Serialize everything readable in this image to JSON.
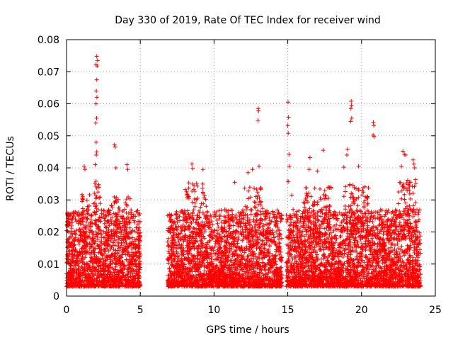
{
  "chart_data": {
    "type": "scatter",
    "title": "Day 330 of 2019, Rate Of TEC Index for receiver wind",
    "xlabel": "GPS time / hours",
    "ylabel": "ROTI / TECUs",
    "xlim": [
      0,
      25
    ],
    "ylim": [
      0,
      0.08
    ],
    "x_ticks": [
      0,
      5,
      10,
      15,
      20,
      25
    ],
    "y_ticks": [
      0,
      0.01,
      0.02,
      0.03,
      0.04,
      0.05,
      0.06,
      0.07,
      0.08
    ],
    "x_tick_labels": [
      "0",
      "5",
      "10",
      "15",
      "20",
      "25"
    ],
    "y_tick_labels": [
      "0",
      "0.01",
      "0.02",
      "0.03",
      "0.04",
      "0.05",
      "0.06",
      "0.07",
      "0.08"
    ],
    "grid": true,
    "marker": "+",
    "series_color": "#ff0000",
    "segments": [
      {
        "start": 0.0,
        "end": 5.0
      },
      {
        "start": 6.85,
        "end": 14.6
      },
      {
        "start": 14.9,
        "end": 24.0
      }
    ],
    "base_points_per_hour": 320,
    "base_range": [
      0.003,
      0.021
    ],
    "outliers": [
      {
        "x": 2.05,
        "y": 0.0748
      },
      {
        "x": 2.1,
        "y": 0.0735
      },
      {
        "x": 2.0,
        "y": 0.0722
      },
      {
        "x": 2.08,
        "y": 0.0718
      },
      {
        "x": 2.05,
        "y": 0.0675
      },
      {
        "x": 2.02,
        "y": 0.064
      },
      {
        "x": 2.06,
        "y": 0.062
      },
      {
        "x": 2.0,
        "y": 0.06
      },
      {
        "x": 2.04,
        "y": 0.0555
      },
      {
        "x": 1.98,
        "y": 0.054
      },
      {
        "x": 2.01,
        "y": 0.048
      },
      {
        "x": 2.05,
        "y": 0.045
      },
      {
        "x": 2.02,
        "y": 0.044
      },
      {
        "x": 1.95,
        "y": 0.041
      },
      {
        "x": 3.25,
        "y": 0.0472
      },
      {
        "x": 3.3,
        "y": 0.0465
      },
      {
        "x": 3.35,
        "y": 0.04
      },
      {
        "x": 1.2,
        "y": 0.0405
      },
      {
        "x": 1.25,
        "y": 0.0395
      },
      {
        "x": 4.1,
        "y": 0.041
      },
      {
        "x": 4.15,
        "y": 0.0395
      },
      {
        "x": 8.5,
        "y": 0.0412
      },
      {
        "x": 8.55,
        "y": 0.0398
      },
      {
        "x": 9.25,
        "y": 0.0395
      },
      {
        "x": 11.4,
        "y": 0.0355
      },
      {
        "x": 12.3,
        "y": 0.0385
      },
      {
        "x": 12.6,
        "y": 0.0395
      },
      {
        "x": 13.0,
        "y": 0.0585
      },
      {
        "x": 13.02,
        "y": 0.0578
      },
      {
        "x": 12.98,
        "y": 0.0548
      },
      {
        "x": 13.05,
        "y": 0.0405
      },
      {
        "x": 15.02,
        "y": 0.0605
      },
      {
        "x": 15.05,
        "y": 0.0558
      },
      {
        "x": 15.0,
        "y": 0.0532
      },
      {
        "x": 15.03,
        "y": 0.0508
      },
      {
        "x": 15.08,
        "y": 0.0442
      },
      {
        "x": 15.1,
        "y": 0.0405
      },
      {
        "x": 16.5,
        "y": 0.0432
      },
      {
        "x": 16.45,
        "y": 0.0395
      },
      {
        "x": 17.4,
        "y": 0.0455
      },
      {
        "x": 17.0,
        "y": 0.039
      },
      {
        "x": 18.8,
        "y": 0.0402
      },
      {
        "x": 19.05,
        "y": 0.0458
      },
      {
        "x": 19.0,
        "y": 0.044
      },
      {
        "x": 19.3,
        "y": 0.0608
      },
      {
        "x": 19.32,
        "y": 0.0595
      },
      {
        "x": 19.28,
        "y": 0.0585
      },
      {
        "x": 19.33,
        "y": 0.0555
      },
      {
        "x": 19.27,
        "y": 0.0545
      },
      {
        "x": 19.8,
        "y": 0.0405
      },
      {
        "x": 20.8,
        "y": 0.0542
      },
      {
        "x": 20.83,
        "y": 0.0532
      },
      {
        "x": 20.78,
        "y": 0.0502
      },
      {
        "x": 20.85,
        "y": 0.0498
      },
      {
        "x": 22.8,
        "y": 0.0452
      },
      {
        "x": 22.9,
        "y": 0.0442
      },
      {
        "x": 23.0,
        "y": 0.044
      },
      {
        "x": 22.7,
        "y": 0.0405
      },
      {
        "x": 23.5,
        "y": 0.0425
      },
      {
        "x": 23.55,
        "y": 0.0412
      },
      {
        "x": 23.6,
        "y": 0.04
      },
      {
        "x": 7.0,
        "y": 0.0212
      },
      {
        "x": 0.05,
        "y": 0.0232
      }
    ],
    "elevated_bands": [
      {
        "x0": 1.0,
        "x1": 1.6,
        "ymax": 0.032
      },
      {
        "x0": 1.8,
        "x1": 2.3,
        "ymax": 0.036
      },
      {
        "x0": 3.0,
        "x1": 3.6,
        "ymax": 0.031
      },
      {
        "x0": 3.9,
        "x1": 4.4,
        "ymax": 0.031
      },
      {
        "x0": 8.0,
        "x1": 9.5,
        "ymax": 0.036
      },
      {
        "x0": 12.0,
        "x1": 13.3,
        "ymax": 0.034
      },
      {
        "x0": 15.0,
        "x1": 15.3,
        "ymax": 0.036
      },
      {
        "x0": 16.0,
        "x1": 18.0,
        "ymax": 0.034
      },
      {
        "x0": 18.8,
        "x1": 20.5,
        "ymax": 0.035
      },
      {
        "x0": 22.5,
        "x1": 23.7,
        "ymax": 0.037
      }
    ]
  }
}
